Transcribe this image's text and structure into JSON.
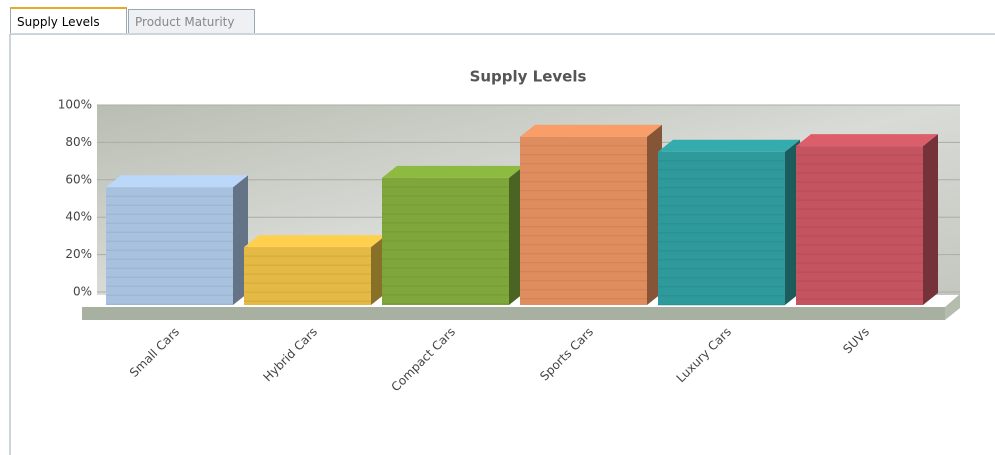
{
  "tabs": [
    "Supply Levels",
    "Product Maturity"
  ],
  "chart_data": {
    "type": "bar",
    "title": "Supply Levels",
    "categories": [
      "Small Cars",
      "Hybrid Cars",
      "Compact Cars",
      "Sports Cars",
      "Luxury Cars",
      "SUVs"
    ],
    "values": [
      56,
      24,
      61,
      83,
      75,
      78
    ],
    "colors": [
      "#a7c1df",
      "#e4ba45",
      "#7ea63a",
      "#df8d5e",
      "#2e9a9b",
      "#c4545f"
    ],
    "ylim": [
      0,
      100
    ],
    "yticks": [
      {
        "value": 0,
        "label": "0%"
      },
      {
        "value": 20,
        "label": "20%"
      },
      {
        "value": 40,
        "label": "40%"
      },
      {
        "value": 60,
        "label": "60%"
      },
      {
        "value": 80,
        "label": "80%"
      },
      {
        "value": 100,
        "label": "100%"
      }
    ],
    "grid": true
  }
}
